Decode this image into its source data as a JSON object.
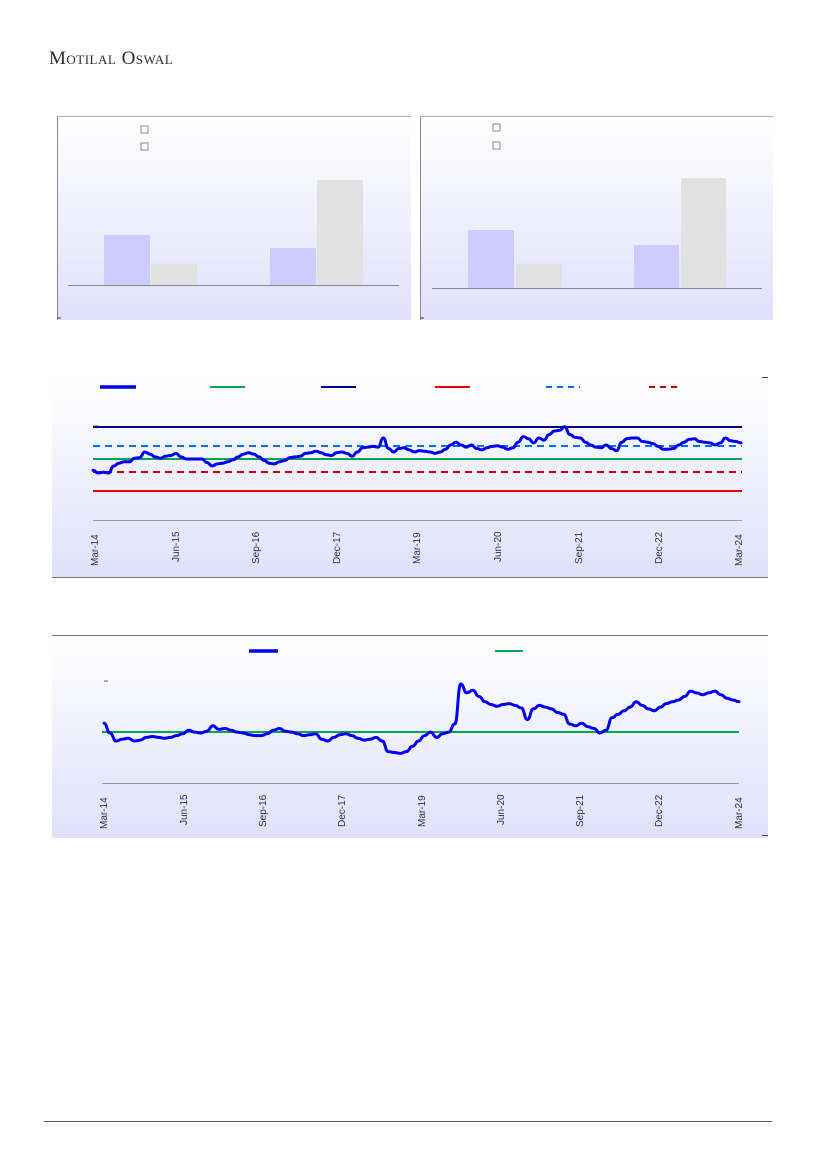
{
  "header": {
    "brand": "Motilal Oswal"
  },
  "colors": {
    "bar_a": "#ccccff",
    "bar_b": "#e1e1e1",
    "series_main": "#0000ee",
    "green": "#00a651",
    "navy": "#000080",
    "red": "#ee0000",
    "blue_dash": "#0070f0",
    "red_dash": "#cc0000"
  },
  "chart_data": [
    {
      "type": "bar",
      "id": "bar-left",
      "legend": [
        "",
        ""
      ],
      "groups": 2,
      "series": [
        {
          "values": [
            34,
            21
          ]
        },
        {
          "values": [
            14,
            72
          ]
        }
      ],
      "ylim": [
        0,
        80
      ]
    },
    {
      "type": "bar",
      "id": "bar-right",
      "legend": [
        "",
        ""
      ],
      "groups": 2,
      "series": [
        {
          "values": [
            35,
            26
          ]
        },
        {
          "values": [
            15,
            68
          ]
        }
      ],
      "ylim": [
        0,
        80
      ]
    },
    {
      "type": "line",
      "id": "line-top",
      "x_ticks": [
        "Mar-14",
        "Jun-15",
        "Sep-16",
        "Dec-17",
        "Mar-19",
        "Jun-20",
        "Sep-21",
        "Dec-22",
        "Mar-24"
      ],
      "ylim": [
        0,
        100
      ],
      "reference_lines": [
        {
          "value": 94,
          "style": "solid",
          "color": "navy"
        },
        {
          "value": 76,
          "style": "dashed",
          "color": "blue_dash"
        },
        {
          "value": 62,
          "style": "solid",
          "color": "green"
        },
        {
          "value": 49,
          "style": "dashed",
          "color": "red_dash"
        },
        {
          "value": 30,
          "style": "solid",
          "color": "red"
        }
      ],
      "legend_swatches": [
        {
          "color": "series_main",
          "style": "thick"
        },
        {
          "color": "green",
          "style": "solid"
        },
        {
          "color": "navy",
          "style": "solid"
        },
        {
          "color": "red",
          "style": "solid"
        },
        {
          "color": "blue_dash",
          "style": "dashed"
        },
        {
          "color": "red_dash",
          "style": "dashed"
        }
      ],
      "series": [
        {
          "values": [
            34,
            30,
            31,
            30,
            40,
            44,
            46,
            46,
            51,
            52,
            60,
            57,
            53,
            51,
            54,
            55,
            58,
            53,
            50,
            50,
            50,
            50,
            45,
            40,
            43,
            44,
            46,
            49,
            53,
            57,
            59,
            57,
            53,
            48,
            44,
            43,
            46,
            48,
            52,
            53,
            54,
            58,
            59,
            61,
            59,
            56,
            55,
            59,
            60,
            58,
            54,
            60,
            66,
            67,
            68,
            67,
            80,
            65,
            60,
            65,
            66,
            63,
            60,
            62,
            61,
            60,
            58,
            60,
            64,
            70,
            74,
            70,
            67,
            70,
            65,
            63,
            66,
            68,
            69,
            67,
            64,
            66,
            74,
            82,
            79,
            73,
            80,
            77,
            85,
            90,
            91,
            96,
            85,
            81,
            80,
            74,
            70,
            67,
            66,
            70,
            65,
            62,
            74,
            79,
            80,
            80,
            75,
            74,
            72,
            68,
            64,
            64,
            65,
            70,
            74,
            78,
            79,
            75,
            74,
            73,
            70,
            73,
            80,
            76,
            75,
            73
          ]
        }
      ]
    },
    {
      "type": "line",
      "id": "line-bottom",
      "x_ticks": [
        "Mar-14",
        "Jun-15",
        "Sep-16",
        "Dec-17",
        "Mar-19",
        "Jun-20",
        "Sep-21",
        "Dec-22",
        "Mar-24"
      ],
      "ylim": [
        0,
        100
      ],
      "reference_lines": [
        {
          "value": 51,
          "style": "solid",
          "color": "green"
        }
      ],
      "legend_swatches": [
        {
          "color": "series_main",
          "style": "thick"
        },
        {
          "color": "green",
          "style": "solid"
        }
      ],
      "series": [
        {
          "values": [
            56,
            45,
            36,
            38,
            39,
            36,
            37,
            40,
            41,
            40,
            39,
            40,
            42,
            44,
            48,
            46,
            45,
            47,
            53,
            49,
            50,
            48,
            46,
            45,
            43,
            42,
            42,
            44,
            48,
            50,
            47,
            46,
            44,
            42,
            43,
            44,
            38,
            36,
            40,
            43,
            44,
            42,
            39,
            37,
            38,
            40,
            36,
            24,
            23,
            22,
            24,
            30,
            36,
            42,
            46,
            40,
            44,
            46,
            55,
            100,
            90,
            93,
            86,
            80,
            77,
            75,
            77,
            78,
            76,
            73,
            60,
            72,
            76,
            74,
            72,
            68,
            66,
            55,
            53,
            56,
            52,
            50,
            45,
            48,
            62,
            66,
            70,
            74,
            80,
            76,
            72,
            70,
            74,
            78,
            80,
            82,
            86,
            92,
            90,
            88,
            90,
            92,
            88,
            84,
            82,
            80
          ]
        }
      ]
    }
  ]
}
